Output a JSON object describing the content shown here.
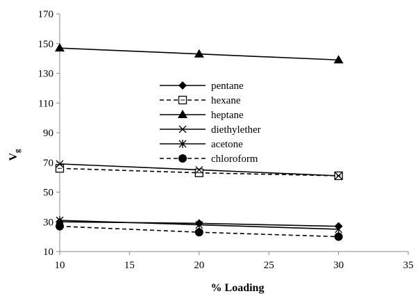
{
  "chart_data": {
    "type": "line",
    "title": "",
    "xlabel": "% Loading",
    "ylabel_main": "V",
    "ylabel_sub": "g",
    "xlim": [
      10,
      35
    ],
    "ylim": [
      10,
      170
    ],
    "xticks": [
      10,
      15,
      20,
      25,
      30,
      35
    ],
    "yticks": [
      10,
      30,
      50,
      70,
      90,
      110,
      130,
      150,
      170
    ],
    "grid": false,
    "legend_position": "center",
    "x": [
      10,
      20,
      30
    ],
    "series": [
      {
        "name": "pentane",
        "values": [
          30,
          29,
          27
        ],
        "marker": "diamond",
        "dash": "solid"
      },
      {
        "name": "hexane",
        "values": [
          66,
          63,
          61
        ],
        "marker": "square-open",
        "dash": "dashed"
      },
      {
        "name": "heptane",
        "values": [
          147,
          143,
          139
        ],
        "marker": "triangle",
        "dash": "solid"
      },
      {
        "name": "diethylether",
        "values": [
          69,
          65,
          61
        ],
        "marker": "x",
        "dash": "solid"
      },
      {
        "name": "acetone",
        "values": [
          31,
          28,
          25
        ],
        "marker": "asterisk",
        "dash": "solid"
      },
      {
        "name": "chloroform",
        "values": [
          27,
          23,
          20
        ],
        "marker": "circle",
        "dash": "dashed"
      }
    ],
    "colors": {
      "line": "#000000",
      "axis": "#888888",
      "background": "#ffffff"
    }
  }
}
